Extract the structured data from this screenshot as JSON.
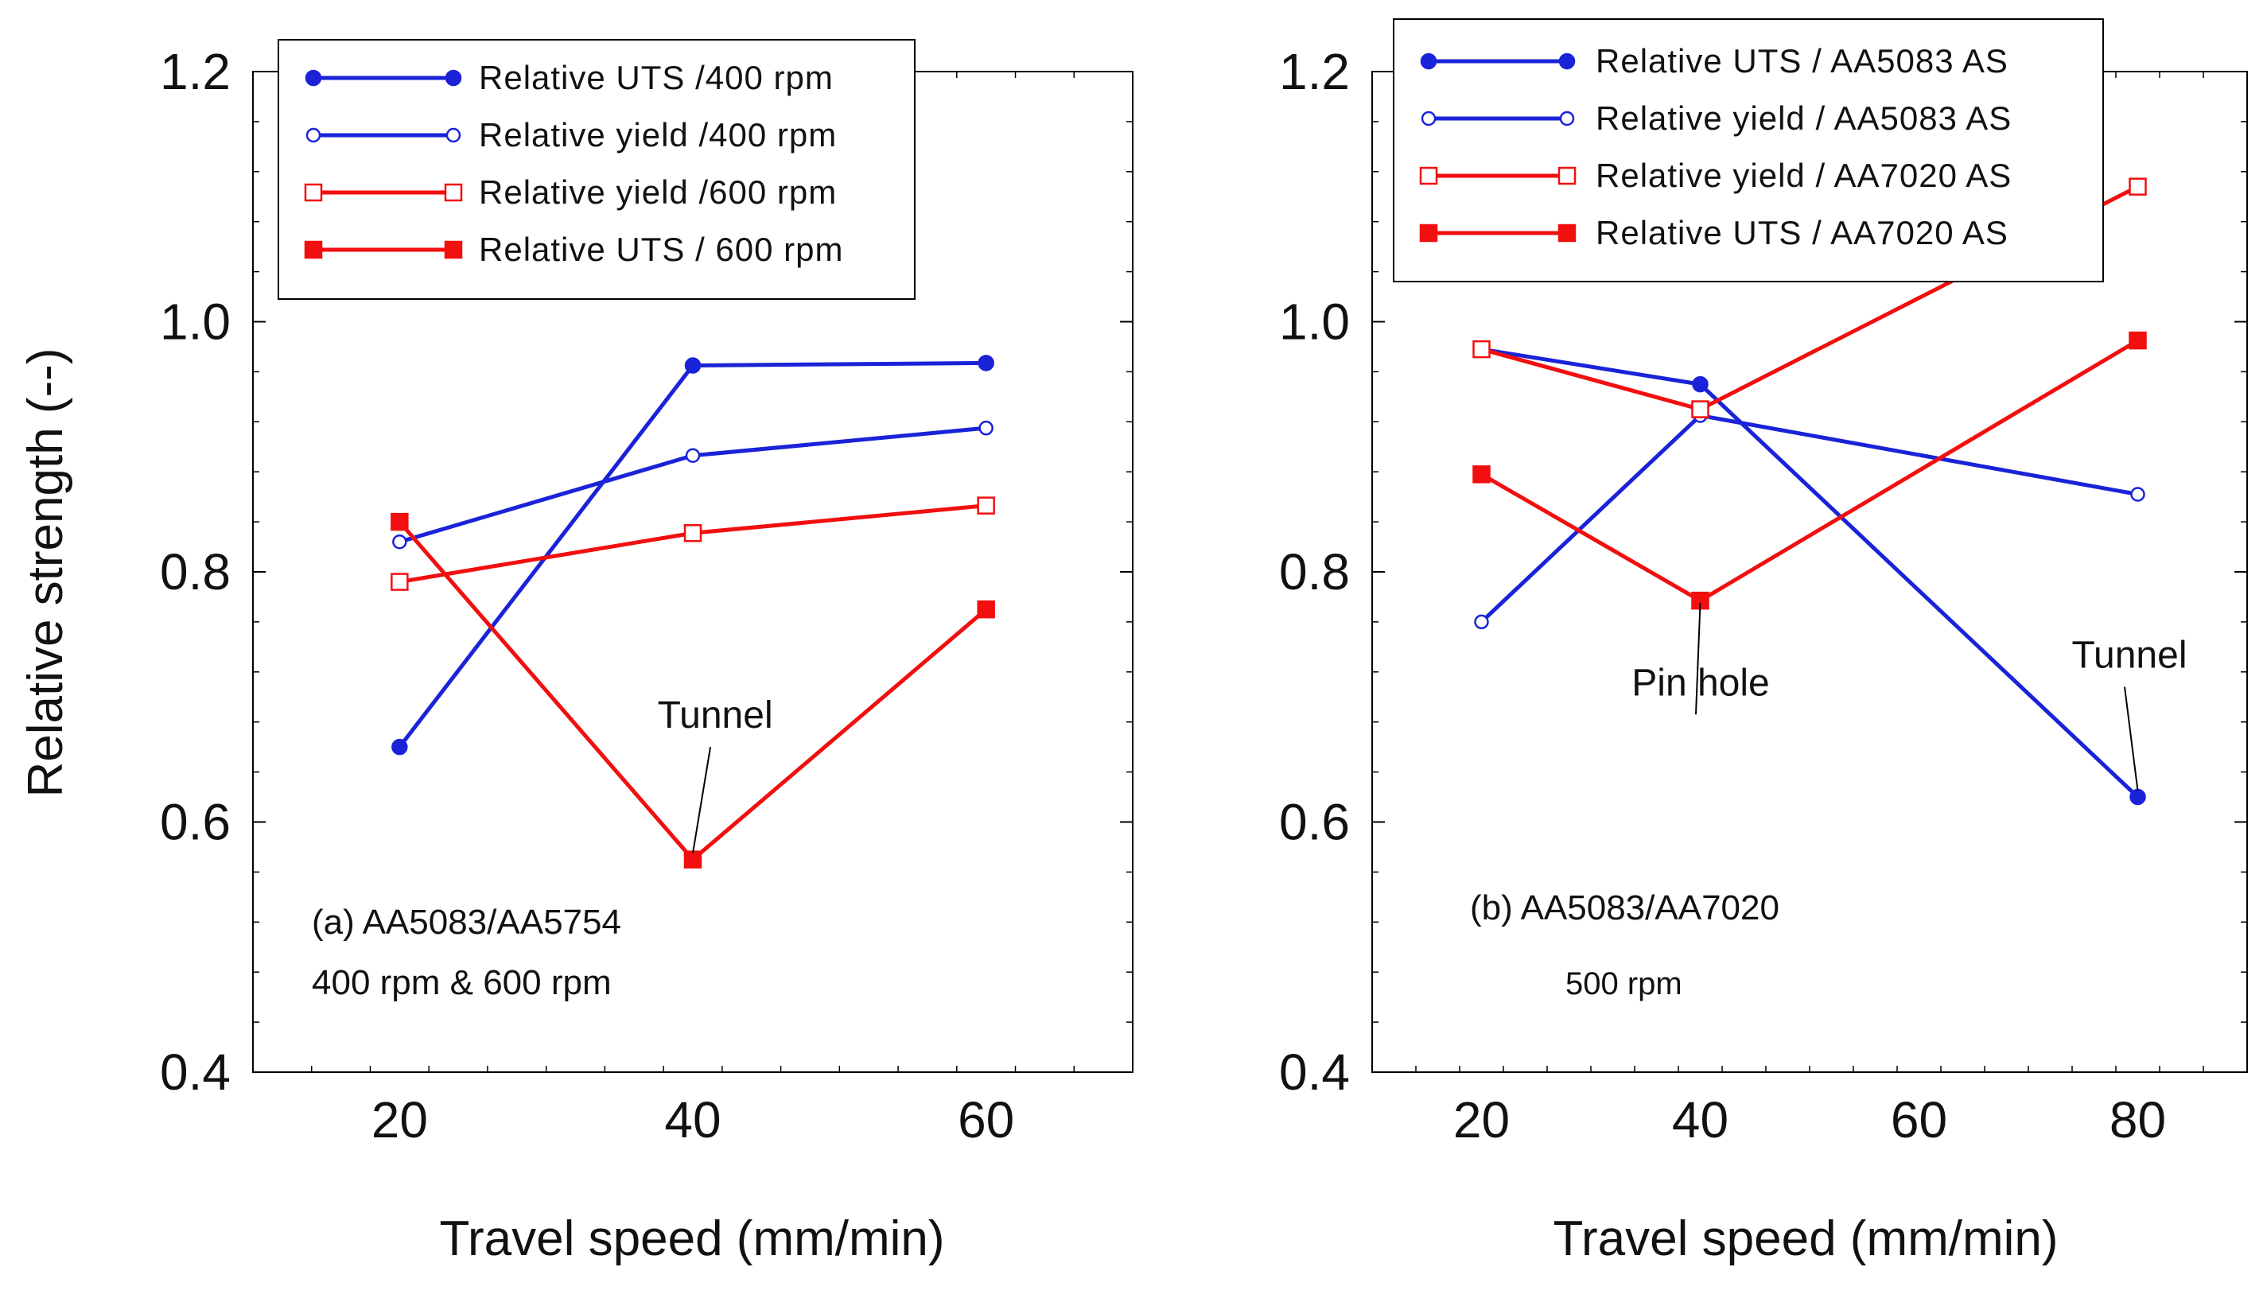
{
  "figure": {
    "ylabel": "Relative strength (--)"
  },
  "colors": {
    "blue": "#1a23d8",
    "red": "#f20f0f",
    "axis": "#000000"
  },
  "chart_data": [
    {
      "type": "line",
      "xlabel": "Travel speed (mm/min)",
      "ylabel": "Relative strength (--)",
      "xlim": [
        10,
        70
      ],
      "ylim": [
        0.4,
        1.2
      ],
      "xticks": [
        20,
        40,
        60
      ],
      "yticks": [
        0.4,
        0.6,
        0.8,
        1.0,
        1.2
      ],
      "ytick_labels": [
        "0.4",
        "0.6",
        "0.8",
        "1.0",
        "1.2"
      ],
      "note_lines": [
        "(a) AA5083/AA5754",
        "400 rpm & 600 rpm"
      ],
      "legend": {
        "placement": "top-left"
      },
      "series": [
        {
          "name": "Relative UTS /400 rpm",
          "color": "#1a23d8",
          "marker": "circle-filled",
          "x": [
            20,
            40,
            60
          ],
          "y": [
            0.66,
            0.965,
            0.967
          ]
        },
        {
          "name": "Relative yield /400 rpm",
          "color": "#1a23d8",
          "marker": "circle-open",
          "x": [
            20,
            40,
            60
          ],
          "y": [
            0.824,
            0.893,
            0.915
          ]
        },
        {
          "name": "Relative yield /600 rpm",
          "color": "#f20f0f",
          "marker": "square-open",
          "x": [
            20,
            40,
            60
          ],
          "y": [
            0.792,
            0.831,
            0.853
          ]
        },
        {
          "name": "Relative UTS / 600 rpm",
          "color": "#f20f0f",
          "marker": "square-filled",
          "x": [
            20,
            40,
            60
          ],
          "y": [
            0.84,
            0.57,
            0.77
          ]
        }
      ],
      "annotations": [
        {
          "text": "Tunnel",
          "target": [
            40,
            0.57
          ],
          "anchor": [
            41.2,
            0.66
          ]
        }
      ]
    },
    {
      "type": "line",
      "xlabel": "Travel speed (mm/min)",
      "ylabel": "",
      "xlim": [
        10,
        90
      ],
      "ylim": [
        0.4,
        1.2
      ],
      "xticks": [
        20,
        40,
        60,
        80
      ],
      "yticks": [
        0.4,
        0.6,
        0.8,
        1.0,
        1.2
      ],
      "ytick_labels": [
        "0.4",
        "0.6",
        "0.8",
        "1.0",
        "1.2"
      ],
      "note_lines": [
        "(b) AA5083/AA7020",
        "500 rpm"
      ],
      "legend": {
        "placement": "top-left"
      },
      "series": [
        {
          "name": "Relative UTS / AA5083 AS",
          "color": "#1a23d8",
          "marker": "circle-filled",
          "x": [
            20,
            40,
            80
          ],
          "y": [
            0.978,
            0.95,
            0.62
          ]
        },
        {
          "name": "Relative yield / AA5083 AS",
          "color": "#1a23d8",
          "marker": "circle-open",
          "x": [
            20,
            40,
            80
          ],
          "y": [
            0.76,
            0.925,
            0.862
          ]
        },
        {
          "name": "Relative yield  / AA7020 AS",
          "color": "#f20f0f",
          "marker": "square-open",
          "x": [
            20,
            40,
            80
          ],
          "y": [
            0.978,
            0.93,
            1.108
          ]
        },
        {
          "name": "Relative UTS / AA7020 AS",
          "color": "#f20f0f",
          "marker": "square-filled",
          "x": [
            20,
            40,
            80
          ],
          "y": [
            0.878,
            0.777,
            0.985
          ]
        }
      ],
      "annotations": [
        {
          "text": "Pin hole",
          "target": [
            40,
            0.77
          ],
          "anchor": [
            39.6,
            0.686
          ]
        },
        {
          "text": "Tunnel",
          "target": [
            80,
            0.62
          ],
          "anchor": [
            78.8,
            0.708
          ]
        }
      ]
    }
  ]
}
